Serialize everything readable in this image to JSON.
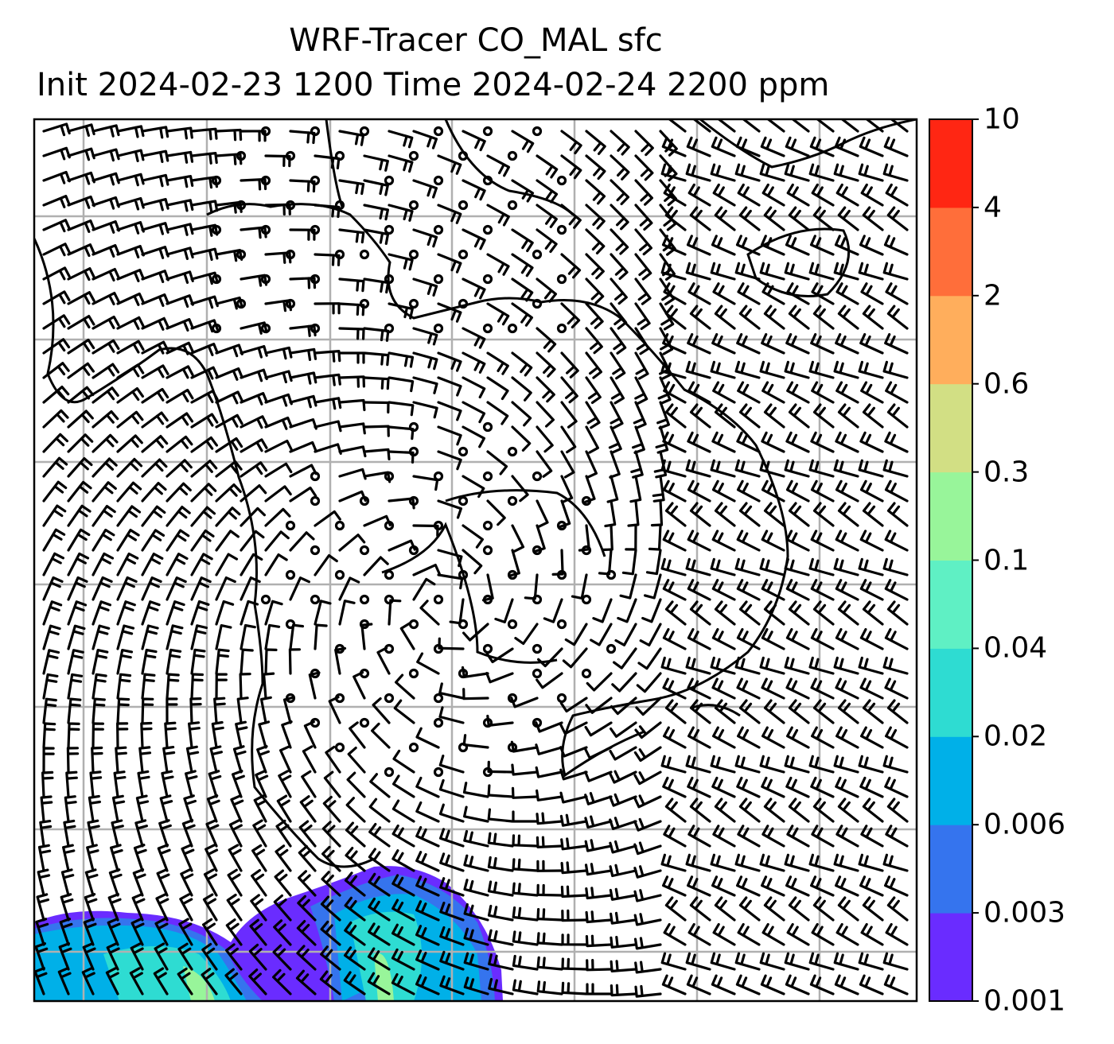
{
  "title": {
    "line1": "WRF-Tracer CO_MAL sfc",
    "line2": "Init 2024-02-23 1200 Time 2024-02-24 2200 ppm"
  },
  "colorbar": {
    "ticks": [
      "0.001",
      "0.003",
      "0.006",
      "0.02",
      "0.04",
      "0.1",
      "0.3",
      "0.6",
      "2",
      "4",
      "10"
    ],
    "colors": [
      "#6a2cff",
      "#3574ee",
      "#00b0e8",
      "#2edcd2",
      "#5ff0c4",
      "#98f59a",
      "#d2df84",
      "#ffae5c",
      "#ff6e3a",
      "#ff2613"
    ]
  },
  "map": {
    "variable": "CO_MAL tracer concentration with wind barbs",
    "grid_color": "#b0b0b0"
  }
}
